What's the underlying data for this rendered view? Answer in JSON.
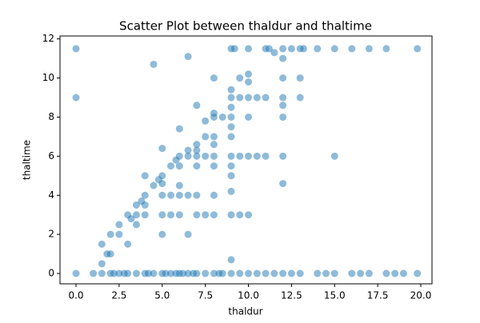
{
  "chart_data": {
    "type": "scatter",
    "title": "Scatter Plot between thaldur and thaltime",
    "x_label": "thaldur",
    "y_label": "thaltime",
    "color": "#1f77b4",
    "x": [
      0,
      1,
      1.5,
      2,
      2.2,
      2.5,
      2.8,
      3,
      3.5,
      4,
      4.2,
      4.5,
      5,
      5.2,
      5.5,
      5.8,
      6,
      6.2,
      6.5,
      6.8,
      7,
      7.5,
      8,
      8.3,
      8.5,
      9,
      9.5,
      10,
      10.5,
      11,
      11.5,
      12,
      12.5,
      13,
      14,
      14.5,
      15,
      16,
      16.5,
      17,
      18,
      18.5,
      19,
      19.8,
      0,
      9,
      9.2,
      10,
      11,
      12,
      12.5,
      13,
      13.2,
      14,
      15,
      16,
      17,
      18,
      19.8,
      0,
      4.5,
      6.5,
      11.5,
      12,
      11.2,
      8,
      9.5,
      10,
      12,
      13,
      10,
      11,
      12,
      9,
      9,
      9.5,
      10,
      10.5,
      13,
      7,
      8,
      9,
      12,
      7.5,
      8,
      8.5,
      9,
      9,
      10,
      12,
      6,
      7.5,
      8,
      9,
      7,
      8,
      6.5,
      7,
      6,
      6.5,
      7,
      7.5,
      8,
      9,
      9.5,
      10,
      10.5,
      11,
      12,
      15,
      5,
      5.8,
      5,
      5.5,
      6,
      7,
      8,
      9,
      9,
      4,
      4.8,
      5,
      4.5,
      6,
      4,
      5,
      5.5,
      6,
      6.5,
      7,
      8,
      12,
      9,
      3.5,
      3.8,
      4,
      3,
      3.5,
      4,
      5,
      5.5,
      6,
      7,
      7.5,
      8,
      9,
      9.5,
      10,
      3.2,
      3.5,
      2.5,
      2.5,
      5,
      6.5,
      2,
      3,
      1.5,
      2,
      1.8,
      1.5,
      9
    ],
    "y": [
      0,
      0,
      0,
      0,
      0,
      0,
      0,
      0,
      0,
      0,
      0,
      0,
      0,
      0,
      0,
      0,
      0,
      0,
      0,
      0,
      0,
      0,
      0,
      0,
      0,
      0,
      0,
      0,
      0,
      0,
      0,
      0,
      0,
      0,
      0,
      0,
      0,
      0,
      0,
      0,
      0,
      0,
      0,
      0,
      11.5,
      11.5,
      11.5,
      11.5,
      11.5,
      11.5,
      11.5,
      11.5,
      11.5,
      11.5,
      11.5,
      11.5,
      11.5,
      11.5,
      11.5,
      9,
      10.7,
      11.1,
      11.3,
      11,
      11.5,
      10,
      10,
      10.2,
      10,
      10,
      9.8,
      9,
      9,
      9,
      9.4,
      9,
      9,
      9,
      9,
      8.6,
      8.2,
      8.5,
      8.6,
      7.8,
      8,
      8,
      8,
      7.5,
      8,
      8,
      7.4,
      7,
      7,
      7,
      6.6,
      6.6,
      6.3,
      6.3,
      6,
      6,
      6,
      6,
      6,
      6,
      6,
      6,
      6,
      6,
      6,
      6,
      6.4,
      5.8,
      5,
      5.5,
      5.5,
      5.5,
      5.5,
      5.5,
      5,
      5,
      4.8,
      4.6,
      4.5,
      4.5,
      4,
      4,
      4,
      4,
      4,
      4,
      4,
      4.6,
      4.2,
      3.5,
      3.7,
      3.5,
      3,
      3,
      3,
      3,
      3,
      3,
      3,
      3,
      3,
      3,
      3,
      3,
      2.8,
      2.5,
      2.5,
      2,
      2,
      2,
      2,
      1.5,
      1.5,
      1,
      1,
      0.5,
      0.7
    ],
    "xlim": [
      -0.93,
      20.65
    ],
    "ylim": [
      -0.53,
      12.15
    ],
    "xticks": [
      {
        "value": 0,
        "label": "0.0"
      },
      {
        "value": 2.5,
        "label": "2.5"
      },
      {
        "value": 5,
        "label": "5.0"
      },
      {
        "value": 7.5,
        "label": "7.5"
      },
      {
        "value": 10,
        "label": "10.0"
      },
      {
        "value": 12.5,
        "label": "12.5"
      },
      {
        "value": 15,
        "label": "15.0"
      },
      {
        "value": 17.5,
        "label": "17.5"
      },
      {
        "value": 20,
        "label": "20.0"
      }
    ],
    "yticks": [
      0,
      2,
      4,
      6,
      8,
      10,
      12
    ]
  }
}
